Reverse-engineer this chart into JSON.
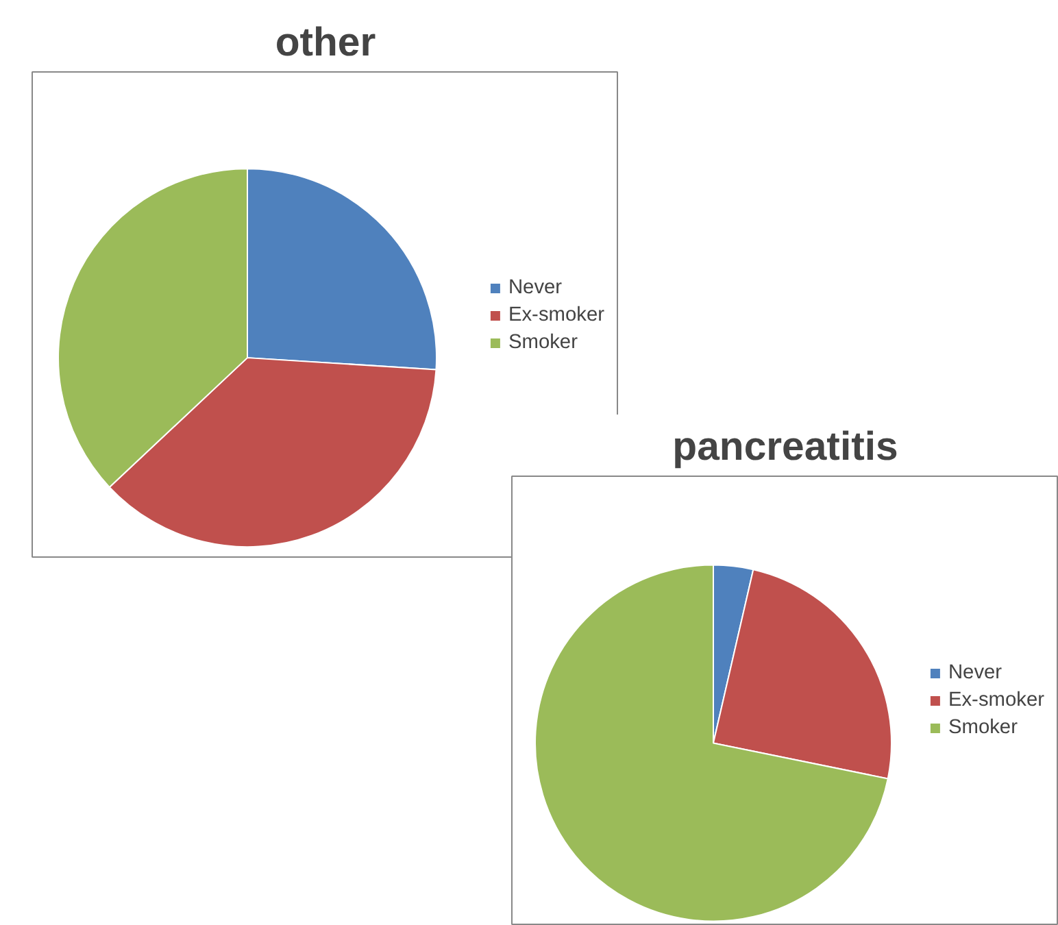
{
  "chart_data": [
    {
      "type": "pie",
      "title": "other",
      "categories": [
        "Never",
        "Ex-smoker",
        "Smoker"
      ],
      "values": [
        26,
        37,
        37
      ],
      "colors": [
        "#4f81bd",
        "#c0504d",
        "#9bbb59"
      ],
      "legend": "right"
    },
    {
      "type": "pie",
      "title": "pancreatitis",
      "categories": [
        "Never",
        "Ex-smoker",
        "Smoker"
      ],
      "values": [
        3.6,
        24.6,
        71.8
      ],
      "colors": [
        "#4f81bd",
        "#c0504d",
        "#9bbb59"
      ],
      "legend": "right"
    }
  ]
}
